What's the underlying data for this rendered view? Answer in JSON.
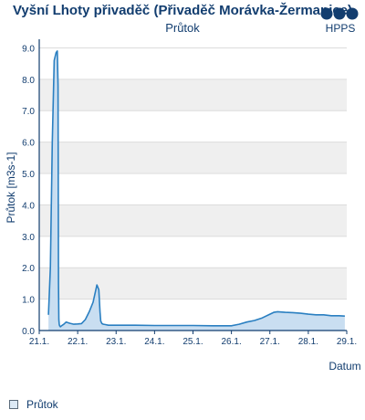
{
  "header": {
    "title": "Vyšní Lhoty přivaděč (Přivaděč Morávka-Žermanice)",
    "subtitle": "Průtok",
    "logo_text": "HPPS"
  },
  "legend": {
    "label": "Průtok"
  },
  "colors": {
    "line": "#2a7fc1",
    "fill": "#c9def1",
    "band": "#efefef",
    "axis": "#123d6f",
    "text": "#123d6f"
  },
  "chart_data": {
    "type": "area",
    "title": "Průtok",
    "xlabel": "Datum",
    "ylabel": "Průtok [m3s-1]",
    "xlim": [
      0,
      8
    ],
    "ylim": [
      0,
      9.1
    ],
    "yticks": [
      0.0,
      1.0,
      2.0,
      3.0,
      4.0,
      5.0,
      6.0,
      7.0,
      8.0,
      9.0
    ],
    "ytick_labels": [
      "0.0",
      "1.0",
      "2.0",
      "3.0",
      "4.0",
      "5.0",
      "6.0",
      "7.0",
      "8.0",
      "9.0"
    ],
    "xtick_labels": [
      "21.1.",
      "22.1.",
      "23.1.",
      "24.1.",
      "25.1.",
      "26.1.",
      "27.1.",
      "28.1.",
      "29.1."
    ],
    "grid": true,
    "series": [
      {
        "name": "Průtok",
        "x": [
          0.24,
          0.29,
          0.34,
          0.39,
          0.44,
          0.47,
          0.49,
          0.5,
          0.51,
          0.52,
          0.53,
          0.55,
          0.58,
          0.64,
          0.7,
          0.8,
          0.9,
          1.0,
          1.1,
          1.2,
          1.3,
          1.4,
          1.5,
          1.55,
          1.58,
          1.6,
          1.63,
          1.67,
          1.72,
          1.8,
          2.0,
          2.5,
          3.0,
          3.5,
          4.0,
          4.5,
          5.0,
          5.2,
          5.4,
          5.6,
          5.8,
          6.0,
          6.1,
          6.2,
          6.4,
          6.6,
          6.8,
          7.0,
          7.2,
          7.4,
          7.6,
          7.8,
          7.95
        ],
        "y": [
          0.5,
          2.0,
          6.0,
          8.6,
          8.85,
          8.9,
          7.8,
          1.5,
          0.35,
          0.2,
          0.15,
          0.12,
          0.15,
          0.2,
          0.27,
          0.23,
          0.2,
          0.21,
          0.22,
          0.35,
          0.6,
          0.9,
          1.45,
          1.3,
          0.6,
          0.3,
          0.22,
          0.2,
          0.19,
          0.17,
          0.17,
          0.17,
          0.16,
          0.16,
          0.16,
          0.15,
          0.15,
          0.2,
          0.27,
          0.32,
          0.4,
          0.52,
          0.58,
          0.6,
          0.58,
          0.57,
          0.55,
          0.52,
          0.5,
          0.5,
          0.47,
          0.47,
          0.46
        ]
      }
    ]
  }
}
